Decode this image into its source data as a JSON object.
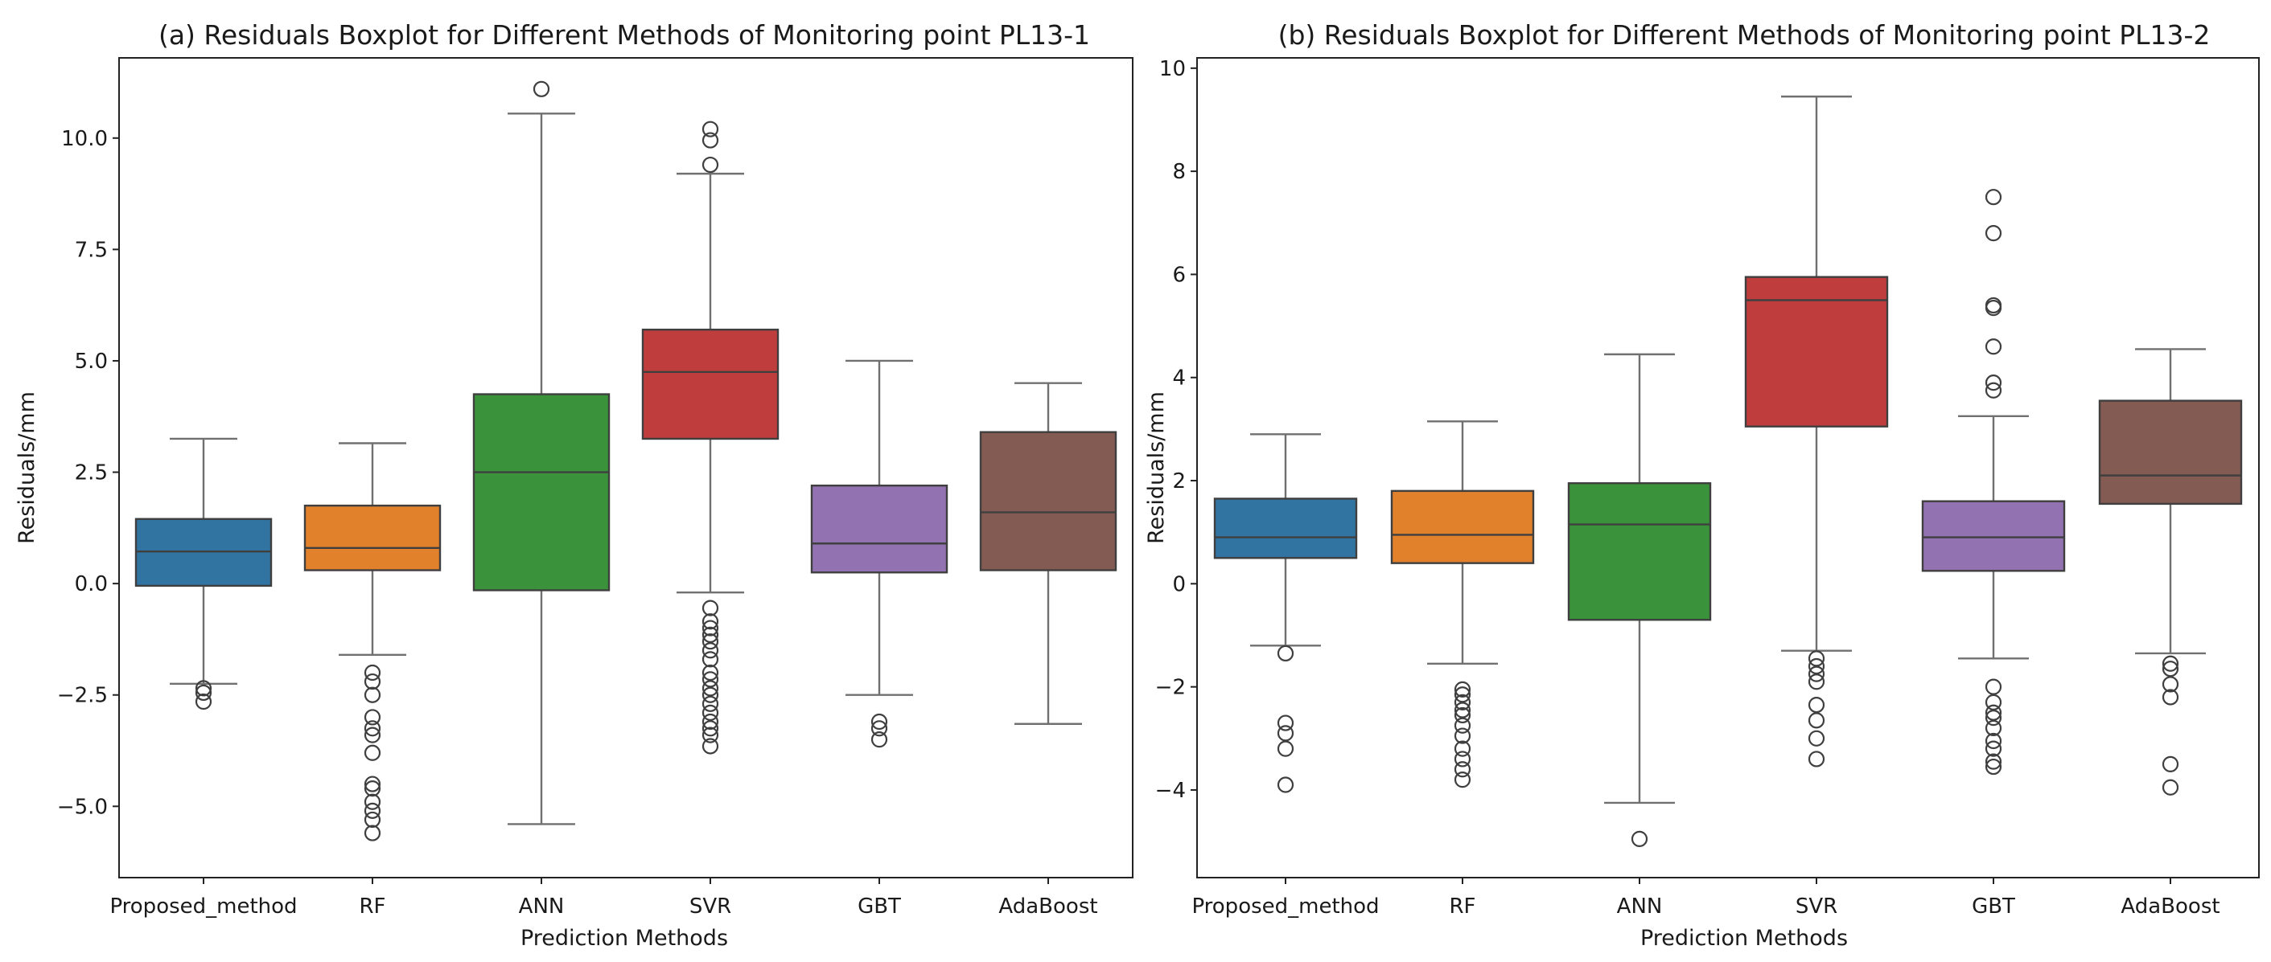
{
  "chart_data": [
    {
      "type": "box",
      "title": "(a) Residuals Boxplot for Different Methods of Monitoring point PL13-1",
      "xlabel": "Prediction Methods",
      "ylabel": "Residuals/mm",
      "ylim": [
        -6.6,
        11.8
      ],
      "yticks": [
        -5.0,
        -2.5,
        0.0,
        2.5,
        5.0,
        7.5,
        10.0
      ],
      "ytick_labels": [
        "−5.0",
        "−2.5",
        "0.0",
        "2.5",
        "5.0",
        "7.5",
        "10.0"
      ],
      "categories": [
        "Proposed_method",
        "RF",
        "ANN",
        "SVR",
        "GBT",
        "AdaBoost"
      ],
      "boxes": [
        {
          "name": "Proposed_method",
          "color": "#3274a1",
          "whislo": -2.25,
          "q1": -0.05,
          "med": 0.72,
          "q3": 1.45,
          "whishi": 3.25,
          "fliers": [
            -2.35,
            -2.45,
            -2.65
          ]
        },
        {
          "name": "RF",
          "color": "#e1812c",
          "whislo": -1.6,
          "q1": 0.3,
          "med": 0.8,
          "q3": 1.75,
          "whishi": 3.15,
          "fliers": [
            -2.0,
            -2.2,
            -2.5,
            -3.0,
            -3.25,
            -3.4,
            -3.8,
            -4.5,
            -4.6,
            -4.9,
            -5.1,
            -5.3,
            -5.6
          ]
        },
        {
          "name": "ANN",
          "color": "#3a923a",
          "whislo": -5.4,
          "q1": -0.15,
          "med": 2.5,
          "q3": 4.25,
          "whishi": 10.55,
          "fliers": [
            11.1
          ]
        },
        {
          "name": "SVR",
          "color": "#c03d3e",
          "whislo": -0.2,
          "q1": 3.25,
          "med": 4.75,
          "q3": 5.7,
          "whishi": 9.2,
          "fliers": [
            9.4,
            9.95,
            10.2,
            -0.55,
            -0.85,
            -1.0,
            -1.15,
            -1.3,
            -1.5,
            -1.7,
            -2.0,
            -2.15,
            -2.35,
            -2.5,
            -2.7,
            -2.9,
            -3.1,
            -3.25,
            -3.4,
            -3.65
          ]
        },
        {
          "name": "GBT",
          "color": "#9372b2",
          "whislo": -2.5,
          "q1": 0.25,
          "med": 0.9,
          "q3": 2.2,
          "whishi": 5.0,
          "fliers": [
            -3.1,
            -3.25,
            -3.5
          ]
        },
        {
          "name": "AdaBoost",
          "color": "#845b53",
          "whislo": -3.15,
          "q1": 0.3,
          "med": 1.6,
          "q3": 3.4,
          "whishi": 4.5,
          "fliers": []
        }
      ]
    },
    {
      "type": "box",
      "title": "(b) Residuals Boxplot for Different Methods of Monitoring point PL13-2",
      "xlabel": "Prediction Methods",
      "ylabel": "Residuals/mm",
      "ylim": [
        -5.7,
        10.2
      ],
      "yticks": [
        -4,
        -2,
        0,
        2,
        4,
        6,
        8,
        10
      ],
      "ytick_labels": [
        "−4",
        "−2",
        "0",
        "2",
        "4",
        "6",
        "8",
        "10"
      ],
      "categories": [
        "Proposed_method",
        "RF",
        "ANN",
        "SVR",
        "GBT",
        "AdaBoost"
      ],
      "boxes": [
        {
          "name": "Proposed_method",
          "color": "#3274a1",
          "whislo": -1.2,
          "q1": 0.5,
          "med": 0.9,
          "q3": 1.65,
          "whishi": 2.9,
          "fliers": [
            -1.35,
            -2.7,
            -2.9,
            -3.2,
            -3.9
          ]
        },
        {
          "name": "RF",
          "color": "#e1812c",
          "whislo": -1.55,
          "q1": 0.4,
          "med": 0.95,
          "q3": 1.8,
          "whishi": 3.15,
          "fliers": [
            -2.05,
            -2.15,
            -2.3,
            -2.45,
            -2.55,
            -2.75,
            -2.95,
            -3.2,
            -3.4,
            -3.6,
            -3.8
          ]
        },
        {
          "name": "ANN",
          "color": "#3a923a",
          "whislo": -4.25,
          "q1": -0.7,
          "med": 1.15,
          "q3": 1.95,
          "whishi": 4.45,
          "fliers": [
            -4.95
          ]
        },
        {
          "name": "SVR",
          "color": "#c03d3e",
          "whislo": -1.3,
          "q1": 3.05,
          "med": 5.5,
          "q3": 5.95,
          "whishi": 9.45,
          "fliers": [
            -1.45,
            -1.6,
            -1.75,
            -1.9,
            -2.35,
            -2.65,
            -3.0,
            -3.4
          ]
        },
        {
          "name": "GBT",
          "color": "#9372b2",
          "whislo": -1.45,
          "q1": 0.25,
          "med": 0.9,
          "q3": 1.6,
          "whishi": 3.25,
          "fliers": [
            3.75,
            3.9,
            4.6,
            5.35,
            5.4,
            6.8,
            7.5,
            -2.0,
            -2.3,
            -2.5,
            -2.6,
            -2.8,
            -3.05,
            -3.2,
            -3.45,
            -3.55
          ]
        },
        {
          "name": "AdaBoost",
          "color": "#845b53",
          "whislo": -1.35,
          "q1": 1.55,
          "med": 2.1,
          "q3": 3.55,
          "whishi": 4.55,
          "fliers": [
            -1.55,
            -1.65,
            -1.95,
            -2.2,
            -3.5,
            -3.95
          ]
        }
      ]
    }
  ]
}
